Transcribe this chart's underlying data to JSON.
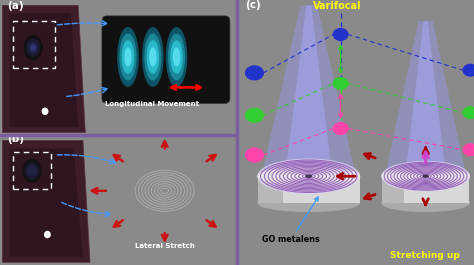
{
  "bg_color": "#8a8a8a",
  "phone_color": "#3d1e28",
  "phone_edge_color": "#5a3045",
  "title_a": "(a)",
  "title_b": "(b)",
  "title_c": "(c)",
  "label_longitudinal": "Longitudinal Movement",
  "label_lateral": "Lateral Stretch",
  "label_go": "GO metalens",
  "label_varifocal": "Varifocal",
  "label_stretching": "Stretching up",
  "varifocal_color": "#ffff00",
  "stretching_color": "#ffff00",
  "divider_color": "#7a5fa0",
  "dot_blue": "#2233cc",
  "dot_green": "#33cc33",
  "dot_pink": "#ff44aa",
  "lens_teal_dark": "#1a7788",
  "lens_teal_mid": "#29aabb",
  "lens_teal_light": "#3accd8",
  "red_arrow_color": "#cc1111",
  "blue_dashed_color": "#4499ff",
  "cone_blue": "#8899ff",
  "cone_purple": "#cc88ff",
  "metalens_ring": "#9966bb",
  "metalens_fill": "#ddd5ee",
  "cylinder_top": "#e8e8e8",
  "cylinder_side": "#d0d0d0",
  "spiral_color": "#aaaaaa"
}
